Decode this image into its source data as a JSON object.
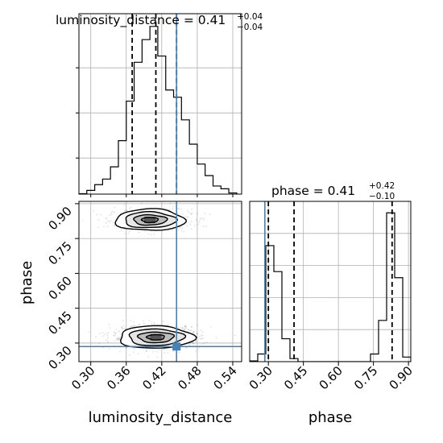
{
  "chart_data": {
    "type": "corner",
    "parameters": [
      "luminosity_distance",
      "phase"
    ],
    "truth": {
      "luminosity_distance": 0.445,
      "phase": 0.285
    },
    "truth_color": "#4682b4",
    "grid": true,
    "luminosity_distance": {
      "title_prefix": "luminosity_distance = 0.41",
      "title_sup": "+0.04",
      "title_sub": "−0.04",
      "xlabel": "luminosity_distance",
      "xlim": [
        0.28,
        0.555
      ],
      "ticks": [
        "0.30",
        "0.36",
        "0.42",
        "0.48",
        "0.54"
      ],
      "tick_values": [
        0.3,
        0.36,
        0.42,
        0.48,
        0.54
      ],
      "quantiles": [
        0.37,
        0.41,
        0.445
      ],
      "hist_edges": [
        0.28,
        0.2933,
        0.3067,
        0.32,
        0.3333,
        0.3467,
        0.36,
        0.3733,
        0.3867,
        0.4,
        0.4133,
        0.4267,
        0.44,
        0.4533,
        0.4667,
        0.48,
        0.4933,
        0.5067,
        0.52,
        0.5333,
        0.5467
      ],
      "hist_counts": [
        0.2,
        1.6,
        4.1,
        6.5,
        11.8,
        23.1,
        40.2,
        57.0,
        66.8,
        72.5,
        59.7,
        45.0,
        41.9,
        32.1,
        21.6,
        13.0,
        8.0,
        3.5,
        2.3,
        0.5
      ],
      "hist_max": 78
    },
    "phase": {
      "title_prefix": "phase = 0.41",
      "title_sup": "+0.42",
      "title_sub": "−0.10",
      "xlabel": "phase",
      "ylabel": "phase",
      "xlim": [
        0.22,
        0.91
      ],
      "ticks": [
        "0.30",
        "0.45",
        "0.60",
        "0.75",
        "0.90"
      ],
      "tick_values": [
        0.3,
        0.45,
        0.6,
        0.75,
        0.9
      ],
      "quantiles": [
        0.3,
        0.41,
        0.83
      ],
      "hist_edges": [
        0.22,
        0.2545,
        0.289,
        0.3235,
        0.358,
        0.3925,
        0.427,
        0.4615,
        0.496,
        0.5305,
        0.565,
        0.5995,
        0.634,
        0.6685,
        0.703,
        0.7375,
        0.772,
        0.8065,
        0.841,
        0.8755,
        0.91
      ],
      "hist_counts": [
        0.5,
        5.0,
        76.0,
        59.0,
        15.0,
        2.0,
        0,
        0,
        0,
        0,
        0,
        0,
        0,
        0,
        0,
        5.0,
        27.0,
        97.5,
        55.0,
        3.0
      ],
      "hist_max": 105
    },
    "joint": {
      "x": "luminosity_distance",
      "y": "phase",
      "modes": [
        {
          "x": 0.4,
          "y": 0.83,
          "sx": 0.028,
          "sy": 0.022,
          "weight": 0.4
        },
        {
          "x": 0.41,
          "y": 0.325,
          "sx": 0.03,
          "sy": 0.023,
          "weight": 0.6
        }
      ]
    }
  }
}
